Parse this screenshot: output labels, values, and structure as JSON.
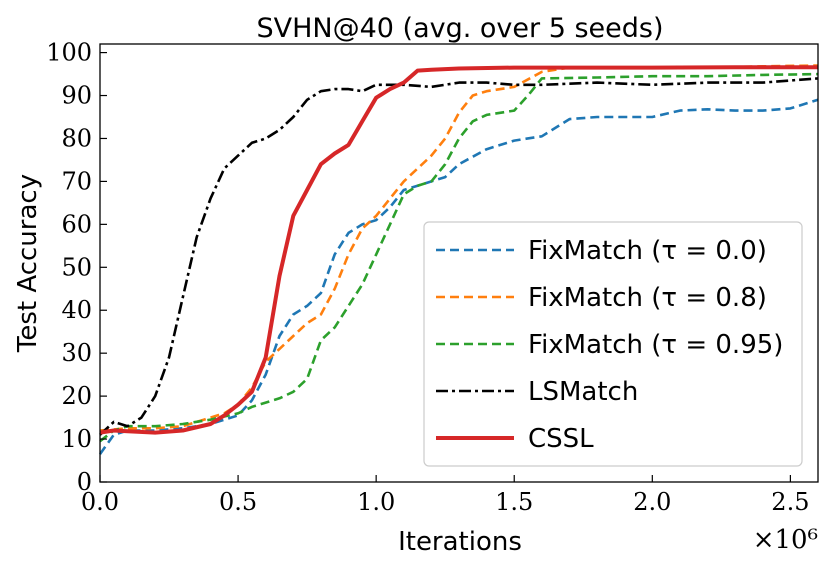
{
  "chart_data": {
    "type": "line",
    "title": "SVHN@40 (avg. over 5 seeds)",
    "xlabel": "Iterations",
    "ylabel": "Test Accuracy",
    "x_multiplier": "×10⁶",
    "xlim": [
      0,
      2.6
    ],
    "ylim": [
      0,
      102
    ],
    "xticks": [
      {
        "value": 0.0,
        "label": "0.0"
      },
      {
        "value": 0.5,
        "label": "0.5"
      },
      {
        "value": 1.0,
        "label": "1.0"
      },
      {
        "value": 1.5,
        "label": "1.5"
      },
      {
        "value": 2.0,
        "label": "2.0"
      },
      {
        "value": 2.5,
        "label": "2.5"
      }
    ],
    "yticks": [
      {
        "value": 0,
        "label": "0"
      },
      {
        "value": 10,
        "label": "10"
      },
      {
        "value": 20,
        "label": "20"
      },
      {
        "value": 30,
        "label": "30"
      },
      {
        "value": 40,
        "label": "40"
      },
      {
        "value": 50,
        "label": "50"
      },
      {
        "value": 60,
        "label": "60"
      },
      {
        "value": 70,
        "label": "70"
      },
      {
        "value": 80,
        "label": "80"
      },
      {
        "value": 90,
        "label": "90"
      },
      {
        "value": 100,
        "label": "100"
      }
    ],
    "grid": false,
    "legend_position": "lower-right",
    "series": [
      {
        "name": "FixMatch (τ = 0.0)",
        "color": "#1f77b4",
        "style": "dashed",
        "points": [
          [
            0.0,
            6.5
          ],
          [
            0.05,
            11
          ],
          [
            0.1,
            12
          ],
          [
            0.2,
            12
          ],
          [
            0.3,
            12.5
          ],
          [
            0.4,
            13.5
          ],
          [
            0.5,
            15.5
          ],
          [
            0.55,
            19
          ],
          [
            0.6,
            25
          ],
          [
            0.65,
            34
          ],
          [
            0.7,
            39
          ],
          [
            0.75,
            41
          ],
          [
            0.8,
            44
          ],
          [
            0.85,
            53
          ],
          [
            0.9,
            58
          ],
          [
            0.95,
            60
          ],
          [
            1.0,
            61
          ],
          [
            1.05,
            64
          ],
          [
            1.1,
            68
          ],
          [
            1.15,
            69
          ],
          [
            1.2,
            70
          ],
          [
            1.25,
            71
          ],
          [
            1.3,
            74
          ],
          [
            1.4,
            77.5
          ],
          [
            1.5,
            79.5
          ],
          [
            1.6,
            80.5
          ],
          [
            1.7,
            84.5
          ],
          [
            1.8,
            85
          ],
          [
            1.9,
            85
          ],
          [
            2.0,
            85
          ],
          [
            2.1,
            86.5
          ],
          [
            2.2,
            86.8
          ],
          [
            2.3,
            86.5
          ],
          [
            2.4,
            86.5
          ],
          [
            2.5,
            87
          ],
          [
            2.6,
            89
          ]
        ]
      },
      {
        "name": "FixMatch (τ = 0.8)",
        "color": "#ff7f0e",
        "style": "dashed",
        "points": [
          [
            0.0,
            12
          ],
          [
            0.1,
            12.5
          ],
          [
            0.2,
            12.5
          ],
          [
            0.3,
            13
          ],
          [
            0.4,
            15
          ],
          [
            0.45,
            16
          ],
          [
            0.5,
            18
          ],
          [
            0.55,
            22
          ],
          [
            0.6,
            28
          ],
          [
            0.65,
            31
          ],
          [
            0.7,
            34
          ],
          [
            0.75,
            37
          ],
          [
            0.8,
            39
          ],
          [
            0.85,
            45
          ],
          [
            0.9,
            53
          ],
          [
            0.95,
            59
          ],
          [
            1.0,
            62
          ],
          [
            1.05,
            66
          ],
          [
            1.1,
            70
          ],
          [
            1.15,
            73
          ],
          [
            1.2,
            76
          ],
          [
            1.25,
            80
          ],
          [
            1.3,
            86
          ],
          [
            1.35,
            90
          ],
          [
            1.4,
            91
          ],
          [
            1.5,
            92
          ],
          [
            1.6,
            95.5
          ],
          [
            1.7,
            96.5
          ],
          [
            1.8,
            96.5
          ],
          [
            2.0,
            96.5
          ],
          [
            2.2,
            96.5
          ],
          [
            2.4,
            96.8
          ],
          [
            2.6,
            97
          ]
        ]
      },
      {
        "name": "FixMatch (τ = 0.95)",
        "color": "#2ca02c",
        "style": "dashed",
        "points": [
          [
            0.0,
            9.5
          ],
          [
            0.05,
            12
          ],
          [
            0.1,
            13
          ],
          [
            0.2,
            13
          ],
          [
            0.3,
            13.5
          ],
          [
            0.4,
            14.5
          ],
          [
            0.5,
            16
          ],
          [
            0.55,
            17.5
          ],
          [
            0.6,
            18.5
          ],
          [
            0.65,
            19.5
          ],
          [
            0.7,
            21
          ],
          [
            0.75,
            24
          ],
          [
            0.8,
            33
          ],
          [
            0.85,
            36
          ],
          [
            0.9,
            41
          ],
          [
            0.95,
            46
          ],
          [
            1.0,
            53
          ],
          [
            1.05,
            60
          ],
          [
            1.1,
            67
          ],
          [
            1.15,
            69
          ],
          [
            1.2,
            70
          ],
          [
            1.25,
            74
          ],
          [
            1.3,
            80
          ],
          [
            1.35,
            84
          ],
          [
            1.4,
            85.5
          ],
          [
            1.5,
            86.5
          ],
          [
            1.55,
            90
          ],
          [
            1.6,
            94
          ],
          [
            1.8,
            94.2
          ],
          [
            2.0,
            94.5
          ],
          [
            2.2,
            94.5
          ],
          [
            2.4,
            94.8
          ],
          [
            2.6,
            95
          ]
        ]
      },
      {
        "name": "LSMatch",
        "color": "#000000",
        "style": "dashdot",
        "points": [
          [
            0.0,
            11
          ],
          [
            0.05,
            14
          ],
          [
            0.1,
            13
          ],
          [
            0.15,
            15
          ],
          [
            0.2,
            20
          ],
          [
            0.25,
            29
          ],
          [
            0.3,
            43
          ],
          [
            0.35,
            57
          ],
          [
            0.4,
            66
          ],
          [
            0.45,
            73
          ],
          [
            0.5,
            76
          ],
          [
            0.55,
            79
          ],
          [
            0.6,
            80
          ],
          [
            0.65,
            82
          ],
          [
            0.7,
            85
          ],
          [
            0.75,
            89
          ],
          [
            0.8,
            91
          ],
          [
            0.85,
            91.5
          ],
          [
            0.9,
            91.5
          ],
          [
            0.95,
            91
          ],
          [
            1.0,
            92.5
          ],
          [
            1.1,
            92.5
          ],
          [
            1.2,
            92
          ],
          [
            1.3,
            93
          ],
          [
            1.4,
            93
          ],
          [
            1.5,
            92.5
          ],
          [
            1.6,
            92.5
          ],
          [
            1.8,
            93
          ],
          [
            2.0,
            92.5
          ],
          [
            2.2,
            93
          ],
          [
            2.4,
            93
          ],
          [
            2.6,
            94
          ]
        ]
      },
      {
        "name": "CSSL",
        "color": "#d62728",
        "style": "solid",
        "points": [
          [
            0.0,
            11.5
          ],
          [
            0.05,
            12
          ],
          [
            0.1,
            11.8
          ],
          [
            0.2,
            11.5
          ],
          [
            0.3,
            12
          ],
          [
            0.4,
            13.5
          ],
          [
            0.45,
            15.5
          ],
          [
            0.5,
            18
          ],
          [
            0.55,
            21
          ],
          [
            0.6,
            29
          ],
          [
            0.65,
            48
          ],
          [
            0.7,
            62
          ],
          [
            0.75,
            68
          ],
          [
            0.8,
            74
          ],
          [
            0.85,
            76.5
          ],
          [
            0.9,
            78.5
          ],
          [
            0.95,
            84
          ],
          [
            1.0,
            89.5
          ],
          [
            1.05,
            91.5
          ],
          [
            1.1,
            93
          ],
          [
            1.15,
            95.8
          ],
          [
            1.2,
            96
          ],
          [
            1.3,
            96.3
          ],
          [
            1.5,
            96.5
          ],
          [
            1.7,
            96.5
          ],
          [
            2.0,
            96.5
          ],
          [
            2.3,
            96.6
          ],
          [
            2.6,
            96.6
          ]
        ]
      }
    ]
  }
}
